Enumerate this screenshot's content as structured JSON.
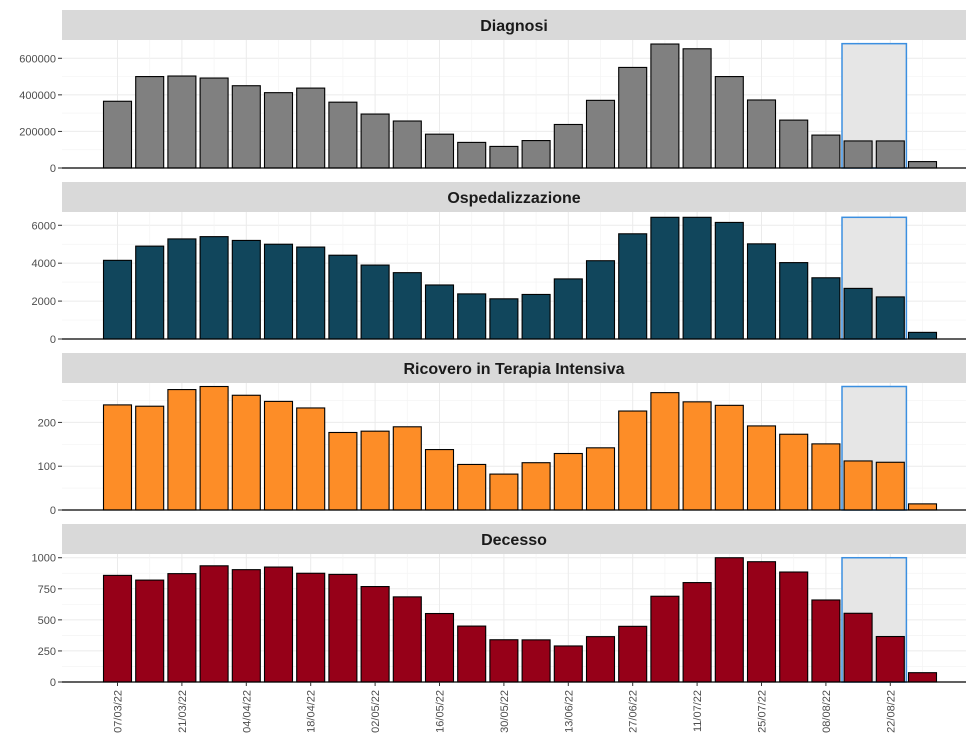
{
  "chart_data": {
    "type": "bar",
    "x_labels": [
      "07/03/22",
      "21/03/22",
      "04/04/22",
      "18/04/22",
      "02/05/22",
      "16/05/22",
      "30/05/22",
      "13/06/22",
      "27/06/22",
      "11/07/22",
      "25/07/22",
      "08/08/22",
      "22/08/22"
    ],
    "week_count": 26,
    "highlight_weeks": [
      23,
      24
    ],
    "grid": true,
    "panels": [
      {
        "title": "Diagnosi",
        "fill": "#808080",
        "ylim": [
          0,
          700000
        ],
        "yticks": [
          0,
          200000,
          400000,
          600000
        ],
        "ytick_labels": [
          "0",
          "200000",
          "400000",
          "600000"
        ],
        "values": [
          365000,
          500000,
          503000,
          492000,
          450000,
          412000,
          437000,
          360000,
          295000,
          257000,
          185000,
          140000,
          118000,
          150000,
          238000,
          370000,
          550000,
          678000,
          652000,
          500000,
          372000,
          262000,
          180000,
          148000,
          148000,
          35000
        ],
        "highlight_top": 680000
      },
      {
        "title": "Ospedalizzazione",
        "fill": "#11465c",
        "ylim": [
          0,
          6700
        ],
        "yticks": [
          0,
          2000,
          4000,
          6000
        ],
        "ytick_labels": [
          "0",
          "2000",
          "4000",
          "6000"
        ],
        "values": [
          4150,
          4900,
          5280,
          5400,
          5200,
          5000,
          4850,
          4420,
          3900,
          3500,
          2850,
          2380,
          2120,
          2350,
          3170,
          4130,
          5550,
          6420,
          6420,
          6150,
          5020,
          4030,
          3230,
          2670,
          2220,
          350
        ],
        "highlight_top": 6420
      },
      {
        "title": "Ricovero in Terapia Intensiva",
        "fill": "#fd8d27",
        "ylim": [
          0,
          290
        ],
        "yticks": [
          0,
          100,
          200
        ],
        "ytick_labels": [
          "0",
          "100",
          "200"
        ],
        "values": [
          240,
          237,
          275,
          282,
          262,
          248,
          233,
          177,
          180,
          190,
          138,
          104,
          82,
          108,
          129,
          142,
          226,
          268,
          247,
          239,
          192,
          173,
          151,
          112,
          109,
          14
        ],
        "highlight_top": 282
      },
      {
        "title": "Decesso",
        "fill": "#960018",
        "ylim": [
          0,
          1030
        ],
        "yticks": [
          0,
          250,
          500,
          750,
          1000
        ],
        "ytick_labels": [
          "0",
          "250",
          "500",
          "750",
          "1000"
        ],
        "values": [
          858,
          820,
          872,
          935,
          904,
          925,
          875,
          866,
          768,
          685,
          551,
          450,
          340,
          339,
          290,
          365,
          448,
          690,
          800,
          1000,
          968,
          885,
          660,
          553,
          366,
          75
        ],
        "highlight_top": 1000
      }
    ]
  }
}
